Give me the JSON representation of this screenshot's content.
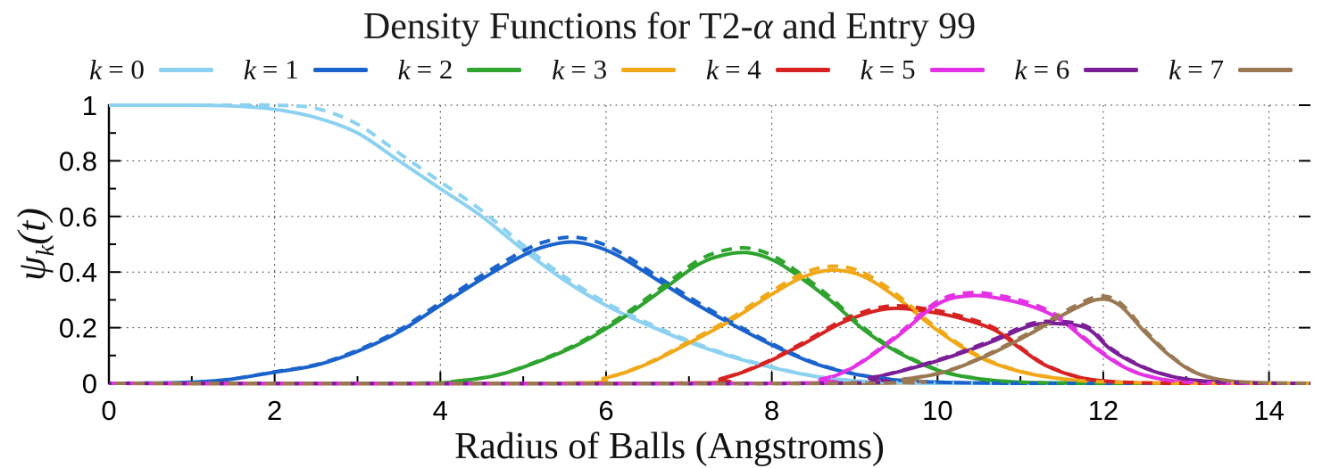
{
  "chart_data": {
    "type": "line",
    "title": "Density Functions for T2-α and Entry 99",
    "title_parts": {
      "pre": "Density Functions for T2-",
      "alpha": "α",
      "post": " and Entry 99"
    },
    "xlabel": "Radius of Balls (Angstroms)",
    "ylabel": {
      "base": "ψ",
      "sub": "k",
      "args": "(t)"
    },
    "xlim": [
      0,
      14.5
    ],
    "ylim": [
      0,
      1
    ],
    "grid": true,
    "xticks": {
      "major": [
        0,
        2,
        4,
        6,
        8,
        10,
        12,
        14
      ],
      "minor": [
        1,
        3,
        5,
        7,
        9,
        11,
        13
      ],
      "labels": [
        "0",
        "2",
        "4",
        "6",
        "8",
        "10",
        "12",
        "14"
      ]
    },
    "yticks": {
      "major": [
        0,
        0.2,
        0.4,
        0.6,
        0.8,
        1
      ],
      "minor": [
        0.1,
        0.3,
        0.5,
        0.7,
        0.9
      ],
      "labels": [
        "0",
        "0.2",
        "0.4",
        "0.6",
        "0.8",
        "1"
      ]
    },
    "legend": {
      "position": "top",
      "items": [
        {
          "var": "k",
          "rest": "= 0",
          "color": "#8CD2F0"
        },
        {
          "var": "k",
          "rest": "= 1",
          "color": "#1B63CC"
        },
        {
          "var": "k",
          "rest": "= 2",
          "color": "#2EA32E"
        },
        {
          "var": "k",
          "rest": "= 3",
          "color": "#F0A818"
        },
        {
          "var": "k",
          "rest": "= 4",
          "color": "#D62322"
        },
        {
          "var": "k",
          "rest": "= 5",
          "color": "#E431E4"
        },
        {
          "var": "k",
          "rest": "= 6",
          "color": "#7A1F96"
        },
        {
          "var": "k",
          "rest": "= 7",
          "color": "#9A7852"
        }
      ]
    },
    "dashed_twin": {
      "present": true,
      "y_scale": 1.035,
      "note_visible": "each colored curve is drawn twice: solid and a nearly identical dashed overlay"
    },
    "series": [
      {
        "name": "k=0",
        "color": "#8CD2F0",
        "points": [
          [
            0,
            1
          ],
          [
            0.7,
            1
          ],
          [
            1.4,
            0.998
          ],
          [
            2,
            0.985
          ],
          [
            2.5,
            0.955
          ],
          [
            3,
            0.9
          ],
          [
            3.5,
            0.8
          ],
          [
            4,
            0.7
          ],
          [
            4.5,
            0.6
          ],
          [
            5,
            0.48
          ],
          [
            5.5,
            0.37
          ],
          [
            6,
            0.28
          ],
          [
            6.5,
            0.21
          ],
          [
            7,
            0.148
          ],
          [
            7.5,
            0.097
          ],
          [
            8,
            0.057
          ],
          [
            8.5,
            0.026
          ],
          [
            9,
            0.009
          ],
          [
            9.6,
            0.002
          ],
          [
            10.2,
            0
          ],
          [
            14.5,
            0
          ]
        ]
      },
      {
        "name": "k=1",
        "color": "#1B63CC",
        "points": [
          [
            0,
            0
          ],
          [
            0.8,
            0.002
          ],
          [
            1.4,
            0.012
          ],
          [
            2,
            0.04
          ],
          [
            2.5,
            0.065
          ],
          [
            3,
            0.115
          ],
          [
            3.5,
            0.185
          ],
          [
            4,
            0.28
          ],
          [
            4.5,
            0.375
          ],
          [
            5,
            0.46
          ],
          [
            5.3,
            0.495
          ],
          [
            5.6,
            0.508
          ],
          [
            5.9,
            0.49
          ],
          [
            6.2,
            0.45
          ],
          [
            6.6,
            0.375
          ],
          [
            7,
            0.3
          ],
          [
            7.5,
            0.215
          ],
          [
            8,
            0.138
          ],
          [
            8.5,
            0.073
          ],
          [
            9,
            0.033
          ],
          [
            9.5,
            0.012
          ],
          [
            10,
            0.004
          ],
          [
            10.6,
            0.001
          ],
          [
            11.2,
            0
          ],
          [
            14.5,
            0
          ]
        ]
      },
      {
        "name": "k=2",
        "color": "#2EA32E",
        "points": [
          [
            0,
            0
          ],
          [
            3.6,
            0
          ],
          [
            4.2,
            0.008
          ],
          [
            4.7,
            0.03
          ],
          [
            5.2,
            0.08
          ],
          [
            5.7,
            0.145
          ],
          [
            6.2,
            0.235
          ],
          [
            6.7,
            0.34
          ],
          [
            7.1,
            0.425
          ],
          [
            7.4,
            0.46
          ],
          [
            7.7,
            0.47
          ],
          [
            8,
            0.445
          ],
          [
            8.3,
            0.39
          ],
          [
            8.7,
            0.3
          ],
          [
            9.1,
            0.195
          ],
          [
            9.5,
            0.115
          ],
          [
            10,
            0.047
          ],
          [
            10.5,
            0.016
          ],
          [
            11,
            0.004
          ],
          [
            11.6,
            0.001
          ],
          [
            12.2,
            0
          ],
          [
            14.5,
            0
          ]
        ]
      },
      {
        "name": "k=3",
        "color": "#F0A818",
        "points": [
          [
            0,
            0
          ],
          [
            5.4,
            0
          ],
          [
            6,
            0.02
          ],
          [
            6.5,
            0.07
          ],
          [
            7,
            0.145
          ],
          [
            7.5,
            0.225
          ],
          [
            8,
            0.32
          ],
          [
            8.4,
            0.385
          ],
          [
            8.75,
            0.407
          ],
          [
            9.1,
            0.385
          ],
          [
            9.5,
            0.31
          ],
          [
            10,
            0.19
          ],
          [
            10.5,
            0.095
          ],
          [
            11,
            0.042
          ],
          [
            11.5,
            0.016
          ],
          [
            12,
            0.005
          ],
          [
            12.6,
            0.001
          ],
          [
            13.2,
            0
          ],
          [
            14.5,
            0
          ]
        ]
      },
      {
        "name": "k=4",
        "color": "#D62322",
        "points": [
          [
            0,
            0
          ],
          [
            6.8,
            0
          ],
          [
            7.4,
            0.018
          ],
          [
            7.9,
            0.07
          ],
          [
            8.4,
            0.145
          ],
          [
            8.9,
            0.225
          ],
          [
            9.4,
            0.268
          ],
          [
            9.9,
            0.257
          ],
          [
            10.3,
            0.232
          ],
          [
            10.7,
            0.19
          ],
          [
            11,
            0.125
          ],
          [
            11.3,
            0.065
          ],
          [
            11.7,
            0.022
          ],
          [
            12.1,
            0.006
          ],
          [
            12.6,
            0.001
          ],
          [
            13.1,
            0
          ],
          [
            14.5,
            0
          ]
        ]
      },
      {
        "name": "k=5",
        "color": "#E431E4",
        "points": [
          [
            0,
            0
          ],
          [
            8,
            0
          ],
          [
            8.6,
            0.015
          ],
          [
            9,
            0.06
          ],
          [
            9.5,
            0.165
          ],
          [
            10,
            0.285
          ],
          [
            10.4,
            0.315
          ],
          [
            10.8,
            0.302
          ],
          [
            11.2,
            0.27
          ],
          [
            11.5,
            0.225
          ],
          [
            11.8,
            0.152
          ],
          [
            12.1,
            0.085
          ],
          [
            12.4,
            0.038
          ],
          [
            12.8,
            0.01
          ],
          [
            13.2,
            0.002
          ],
          [
            13.7,
            0
          ],
          [
            14.5,
            0
          ]
        ]
      },
      {
        "name": "k=6",
        "color": "#7A1F96",
        "points": [
          [
            0,
            0
          ],
          [
            8.6,
            0
          ],
          [
            9.2,
            0.02
          ],
          [
            9.7,
            0.055
          ],
          [
            10.2,
            0.1
          ],
          [
            10.7,
            0.155
          ],
          [
            11.1,
            0.205
          ],
          [
            11.4,
            0.215
          ],
          [
            11.8,
            0.198
          ],
          [
            12.1,
            0.12
          ],
          [
            12.5,
            0.055
          ],
          [
            12.9,
            0.02
          ],
          [
            13.3,
            0.006
          ],
          [
            13.8,
            0.001
          ],
          [
            14.3,
            0
          ],
          [
            14.5,
            0
          ]
        ]
      },
      {
        "name": "k=7",
        "color": "#9A7852",
        "points": [
          [
            0,
            0
          ],
          [
            9,
            0
          ],
          [
            9.6,
            0.015
          ],
          [
            10.1,
            0.042
          ],
          [
            10.6,
            0.1
          ],
          [
            11.1,
            0.175
          ],
          [
            11.6,
            0.26
          ],
          [
            11.95,
            0.302
          ],
          [
            12.2,
            0.28
          ],
          [
            12.5,
            0.185
          ],
          [
            12.8,
            0.1
          ],
          [
            13.1,
            0.04
          ],
          [
            13.45,
            0.011
          ],
          [
            13.9,
            0.002
          ],
          [
            14.5,
            0
          ]
        ]
      }
    ]
  }
}
